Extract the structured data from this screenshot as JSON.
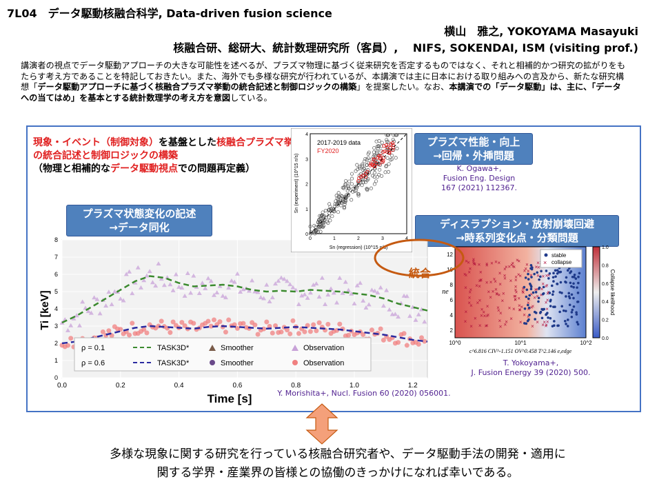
{
  "header": {
    "title": "7L04　データ駆動核融合科学, Data-driven fusion science",
    "author": "横山　雅之, YOKOYAMA Masayuki",
    "affiliation": "核融合研、総研大、統計数理研究所（客員）,　 NIFS, SOKENDAI, ISM (visiting prof.)"
  },
  "abstract": {
    "p1": "講演者の視点でデータ駆動アプローチの大きな可能性を述べるが、プラズマ物理に基づく従来研究を否定するものではなく、それと相補的かつ研究の拡がりをもたらす考え方であることを特記しておきたい。また、海外でも多様な研究が行われているが、本講演では主に日本における取り組みへの言及から、新たな研究構想「",
    "b1": "データ駆動アプローチに基づく核融合プラズマ挙動の統合記述と制御ロジックの構築",
    "p2": "」を提案したい。なお、",
    "b2": "本講演での「データ駆動」は、主に、「データへの当てはめ」を基本とする統計数理学の考え方を意図",
    "p3": "している。"
  },
  "figure": {
    "intro_red1": "現象・イベント（制御対象）",
    "intro_black1": "を基盤とした",
    "intro_red2": "核融合プラズマ挙動の統合記述と制御ロジックの構築",
    "intro_line3a": "（物理と相補的な",
    "intro_red3": "データ駆動視点",
    "intro_line3b": "での問題再定義）",
    "label_state_1": "プラズマ状態変化の記述",
    "label_state_2": "→データ同化",
    "label_perf_1": "プラズマ性能・向上",
    "label_perf_2": "→回帰・外挿問題",
    "label_disr_1": "ディスラプション・放射崩壊回避",
    "label_disr_2": "→時系列変化点・分類問題",
    "integration": "統合",
    "cite_ogawa_1": "K. Ogawa+,",
    "cite_ogawa_2": "Fusion Eng. Design",
    "cite_ogawa_3": "167 (2021) 112367.",
    "cite_morishita": "Y. Morishita+, Nucl. Fusion 60 (2020) 056001.",
    "cite_yokoyama_1": "T. Yokoyama+,",
    "cite_yokoyama_2": "J. Fusion Energy 39 (2020) 500."
  },
  "chart_data": [
    {
      "type": "line",
      "xlabel": "Time [s]",
      "ylabel": "Ti [keV]",
      "xlim": [
        0,
        1.25
      ],
      "ylim": [
        0,
        8
      ],
      "xticks": [
        "0.0",
        "0.2",
        "0.4",
        "0.6",
        "0.8",
        "1.0",
        "1.2"
      ],
      "yticks": [
        "0",
        "1",
        "2",
        "3",
        "4",
        "5",
        "6",
        "7",
        "8"
      ],
      "legend": {
        "rho1": "ρ = 0.1",
        "rho2": "ρ = 0.6",
        "task": "TASK3D*",
        "smoother": "Smoother",
        "observation": "Observation"
      },
      "x": [
        0.0,
        0.05,
        0.1,
        0.15,
        0.2,
        0.25,
        0.3,
        0.35,
        0.4,
        0.45,
        0.5,
        0.55,
        0.6,
        0.65,
        0.7,
        0.75,
        0.8,
        0.85,
        0.9,
        0.95,
        1.0,
        1.05,
        1.1,
        1.15,
        1.2,
        1.25
      ],
      "series": [
        {
          "name": "ρ = 0.1 TASK3D*",
          "color": "#3b8a2e",
          "values": [
            3.2,
            3.6,
            4.1,
            4.6,
            5.1,
            5.6,
            5.9,
            5.8,
            5.5,
            5.3,
            5.35,
            5.4,
            5.3,
            5.1,
            5.0,
            5.05,
            5.0,
            5.1,
            5.05,
            5.0,
            4.9,
            4.8,
            4.6,
            4.3,
            4.1,
            3.9
          ]
        },
        {
          "name": "ρ = 0.6 TASK3D*",
          "color": "#2a2aa0",
          "values": [
            2.0,
            2.1,
            2.3,
            2.5,
            2.7,
            2.9,
            3.0,
            2.95,
            2.9,
            2.85,
            2.95,
            3.0,
            2.95,
            2.9,
            2.85,
            2.9,
            2.95,
            2.9,
            2.85,
            2.8,
            2.7,
            2.6,
            2.5,
            2.35,
            2.2,
            2.1
          ]
        }
      ]
    },
    {
      "type": "scatter",
      "title": "2017-2019 data",
      "legend_2": "FY2020",
      "xlabel": "Sn (regression) (10^15 n/s)",
      "ylabel": "Sn (experiment) (10^15 n/s)",
      "xlim": [
        0,
        4
      ],
      "ylim": [
        0,
        4
      ],
      "xticks": [
        "0",
        "1",
        "2",
        "3",
        "4"
      ],
      "yticks": [
        "0",
        "1",
        "2",
        "3",
        "4"
      ],
      "series": [
        {
          "name": "2017-2019 data",
          "color": "#555555"
        },
        {
          "name": "FY2020",
          "color": "#e02020"
        }
      ]
    },
    {
      "type": "scatter",
      "xlabel": "c^6.816 CIV^-1.151 OV^0.458 T^2.146 e,edge",
      "ylabel": "ne",
      "colorbar_label": "Collapse likelihood",
      "colorbar_ticks": [
        "0.0",
        "0.2",
        "0.4",
        "0.6",
        "0.8",
        "1.0"
      ],
      "xticks": [
        "10^0",
        "10^1",
        "10^2"
      ],
      "yticks": [
        "2",
        "4",
        "6",
        "8",
        "10",
        "12"
      ],
      "legend": {
        "stable": "stable",
        "collapse": "collapse"
      },
      "series": [
        {
          "name": "stable",
          "color": "#1f3a8a"
        },
        {
          "name": "collapse",
          "color": "#b0103a"
        }
      ]
    }
  ],
  "footer": {
    "line1": "多様な現象に関する研究を行っている核融合研究者や、データ駆動手法の開発・適用に",
    "line2": "関する学界・産業界の皆様との協働のきっかけになれば幸いである。"
  }
}
